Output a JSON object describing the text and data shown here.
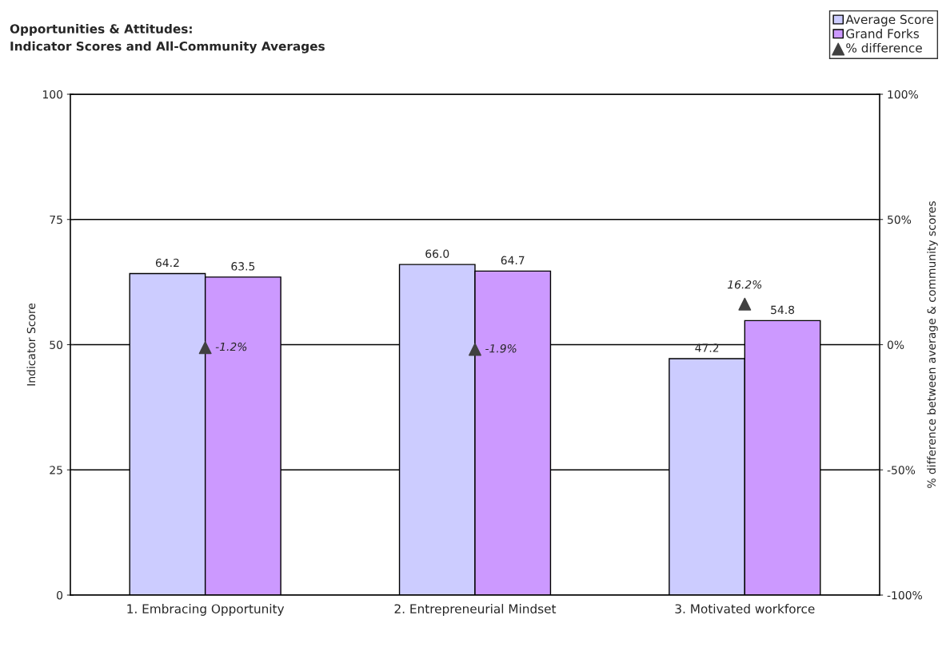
{
  "chart_data": {
    "type": "bar",
    "title": "Opportunities & Attitudes:\nIndicator Scores and All-Community Averages",
    "categories": [
      "1. Embracing Opportunity",
      "2. Entrepreneurial Mindset",
      "3. Motivated workforce"
    ],
    "series": [
      {
        "name": "Average Score",
        "color": "#ccccff",
        "values": [
          64.2,
          66.0,
          47.2
        ],
        "value_labels": [
          "64.2",
          "66.0",
          "47.2"
        ]
      },
      {
        "name": "Grand Forks",
        "color": "#cc99ff",
        "values": [
          63.5,
          64.7,
          54.8
        ],
        "value_labels": [
          "63.5",
          "64.7",
          "54.8"
        ]
      },
      {
        "name": "% difference",
        "type": "scatter",
        "axis": "y2",
        "color": "#404040",
        "marker": "triangle",
        "values": [
          -1.2,
          -1.9,
          16.2
        ],
        "value_labels": [
          "-1.2%",
          "-1.9%",
          "16.2%"
        ]
      }
    ],
    "ylabel": "Indicator Score",
    "y2label": "% difference between average & community scores",
    "ylim": [
      0,
      100
    ],
    "yticks": [
      0,
      25,
      50,
      75,
      100
    ],
    "y2lim": [
      -100,
      100
    ],
    "y2ticks": [
      {
        "value": -100,
        "label": "-100%"
      },
      {
        "value": -50,
        "label": "-50%"
      },
      {
        "value": 0,
        "label": "0%"
      },
      {
        "value": 50,
        "label": "50%"
      },
      {
        "value": 100,
        "label": "100%"
      }
    ],
    "data_labels": true,
    "grid": "y",
    "legend": "top right"
  }
}
